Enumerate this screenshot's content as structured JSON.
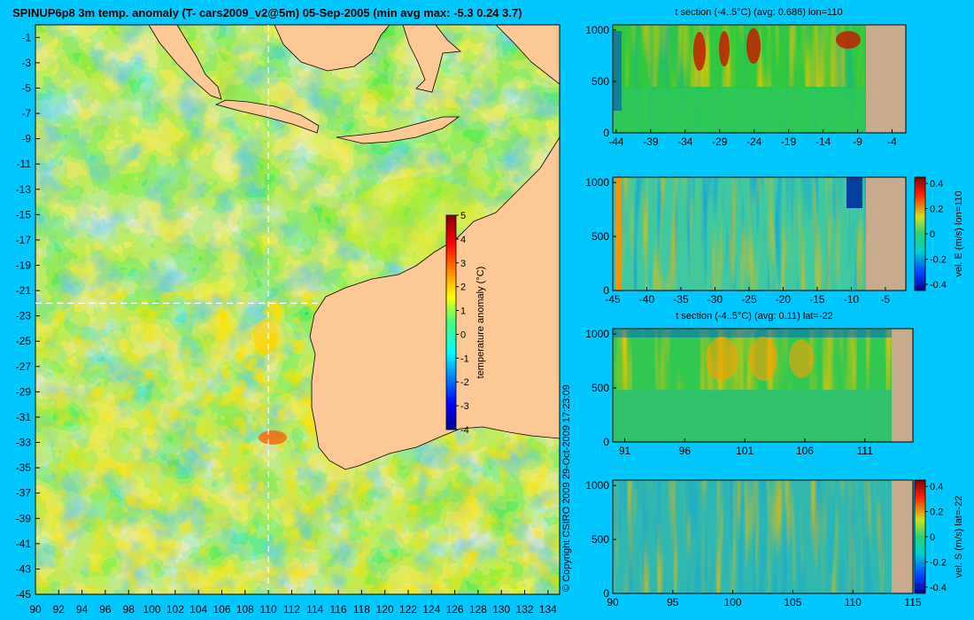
{
  "page": {
    "title": "SPINUP6p8 3m temp. anomaly (T- cars2009_v2@5m) 05-Sep-2005 (min avg max: -5.3 0.24 3.7)",
    "copyright": "© Copyright CSIRO 2009   29-Oct-2009 17:23:09"
  },
  "colors": {
    "background": "#00c8ff",
    "land": "#fcc896",
    "seafloor": "#c8aa8c",
    "crosshair": "#ffffff"
  },
  "chart_data": [
    {
      "id": "map",
      "type": "heatmap",
      "title": "SPINUP6p8 3m temp. anomaly (T- cars2009_v2@5m) 05-Sep-2005 (min avg max: -5.3 0.24 3.7)",
      "x_ticks": [
        90,
        92,
        94,
        96,
        98,
        100,
        102,
        104,
        106,
        108,
        110,
        112,
        114,
        116,
        118,
        120,
        122,
        124,
        126,
        128,
        130,
        132,
        134
      ],
      "y_ticks": [
        -1,
        -3,
        -5,
        -7,
        -9,
        -11,
        -13,
        -15,
        -17,
        -19,
        -21,
        -23,
        -25,
        -27,
        -29,
        -31,
        -33,
        -35,
        -37,
        -39,
        -41,
        -43,
        -45
      ],
      "xlim": [
        90,
        135
      ],
      "ylim": [
        -45,
        0
      ],
      "crosshair": {
        "lon": 110,
        "lat": -22
      },
      "colorbar": {
        "label": "temperature anomaly (°C)",
        "ticks": [
          5,
          4,
          3,
          2,
          1,
          0,
          -1,
          -2,
          -3,
          -4
        ],
        "range": [
          -4,
          5
        ]
      }
    },
    {
      "id": "section1",
      "type": "heatmap",
      "title": "t section (-4..5°C) (avg: 0.686) lon=110",
      "x_ticks": [
        -44,
        -39,
        -34,
        -29,
        -24,
        -19,
        -14,
        -9,
        -4
      ],
      "y_ticks": [
        0,
        500,
        1000
      ],
      "xlim": [
        -44.5,
        -2
      ],
      "ylim": [
        1050,
        0
      ]
    },
    {
      "id": "section2",
      "type": "heatmap",
      "title": "",
      "x_ticks": [
        -45,
        -40,
        -35,
        -30,
        -25,
        -20,
        -15,
        -10,
        -5
      ],
      "y_ticks": [
        0,
        500,
        1000
      ],
      "xlim": [
        -45,
        -2
      ],
      "ylim": [
        1050,
        0
      ],
      "colorbar": {
        "label": "vel. E (m/s) lon=110",
        "ticks": [
          "0.4",
          "0.2",
          "0",
          "-0.2",
          "-0.4"
        ],
        "range": [
          -0.45,
          0.45
        ]
      }
    },
    {
      "id": "section3",
      "type": "heatmap",
      "title": "t section (-4..5°C) (avg: 0.11) lat=-22",
      "x_ticks": [
        91,
        96,
        101,
        106,
        111
      ],
      "y_ticks": [
        0,
        500,
        1000
      ],
      "xlim": [
        90,
        115
      ],
      "ylim": [
        1050,
        0
      ]
    },
    {
      "id": "section4",
      "type": "heatmap",
      "title": "",
      "x_ticks": [
        90,
        95,
        100,
        105,
        110,
        115
      ],
      "y_ticks": [
        0,
        500,
        1000
      ],
      "xlim": [
        90,
        115
      ],
      "ylim": [
        1050,
        0
      ],
      "colorbar": {
        "label": "vel. S (m/s) lat=-22",
        "ticks": [
          "0.4",
          "0.2",
          "0",
          "-0.2",
          "-0.4"
        ],
        "range": [
          -0.45,
          0.45
        ]
      }
    }
  ]
}
